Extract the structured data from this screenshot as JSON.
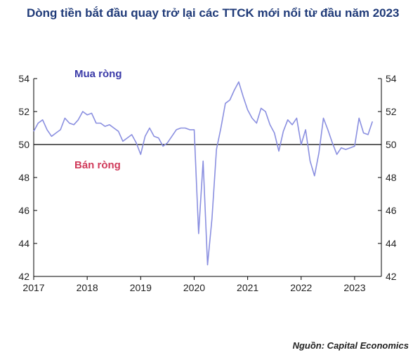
{
  "title": "Dòng tiền bắt đầu quay trở lại các TTCK mới nổi từ đầu năm 2023",
  "source": "Nguồn: Capital Economics",
  "colors": {
    "title": "#1f3a78",
    "line": "#8a8fe0",
    "buy": "#3a3aa8",
    "sell": "#d03a5a"
  },
  "chart_data": {
    "type": "line",
    "title": "Dòng tiền bắt đầu quay trở lại các TTCK mới nổi từ đầu năm 2023",
    "xlabel": "",
    "ylabel": "",
    "xlim": [
      2017,
      2023.5
    ],
    "ylim": [
      42,
      54
    ],
    "x_ticks": [
      "2017",
      "2018",
      "2019",
      "2020",
      "2021",
      "2022",
      "2023"
    ],
    "y_ticks": [
      "42",
      "44",
      "46",
      "48",
      "50",
      "52",
      "54"
    ],
    "reference_line": 50,
    "annotations": [
      "Mua ròng",
      "Bán ròng"
    ],
    "grid": false,
    "series": [
      {
        "name": "",
        "x": [
          2017.0,
          2017.083,
          2017.167,
          2017.25,
          2017.333,
          2017.417,
          2017.5,
          2017.583,
          2017.667,
          2017.75,
          2017.833,
          2017.917,
          2018.0,
          2018.083,
          2018.167,
          2018.25,
          2018.333,
          2018.417,
          2018.5,
          2018.583,
          2018.667,
          2018.75,
          2018.833,
          2018.917,
          2019.0,
          2019.083,
          2019.167,
          2019.25,
          2019.333,
          2019.417,
          2019.5,
          2019.583,
          2019.667,
          2019.75,
          2019.833,
          2019.917,
          2020.0,
          2020.083,
          2020.167,
          2020.25,
          2020.333,
          2020.417,
          2020.5,
          2020.583,
          2020.667,
          2020.75,
          2020.833,
          2020.917,
          2021.0,
          2021.083,
          2021.167,
          2021.25,
          2021.333,
          2021.417,
          2021.5,
          2021.583,
          2021.667,
          2021.75,
          2021.833,
          2021.917,
          2022.0,
          2022.083,
          2022.167,
          2022.25,
          2022.333,
          2022.417,
          2022.5,
          2022.583,
          2022.667,
          2022.75,
          2022.833,
          2022.917,
          2023.0,
          2023.083,
          2023.167,
          2023.25,
          2023.333
        ],
        "values": [
          50.8,
          51.3,
          51.5,
          50.9,
          50.5,
          50.7,
          50.9,
          51.6,
          51.3,
          51.2,
          51.5,
          52.0,
          51.8,
          51.9,
          51.3,
          51.3,
          51.1,
          51.2,
          51.0,
          50.8,
          50.2,
          50.4,
          50.6,
          50.1,
          49.4,
          50.5,
          51.0,
          50.5,
          50.4,
          49.9,
          50.1,
          50.5,
          50.9,
          51.0,
          51.0,
          50.9,
          50.9,
          44.6,
          49.0,
          42.7,
          45.5,
          49.7,
          51.0,
          52.5,
          52.7,
          53.3,
          53.8,
          52.9,
          52.1,
          51.6,
          51.3,
          52.2,
          52.0,
          51.2,
          50.7,
          49.6,
          50.8,
          51.5,
          51.2,
          51.6,
          50.0,
          50.9,
          49.0,
          48.1,
          49.5,
          51.6,
          50.9,
          50.1,
          49.4,
          49.8,
          49.7,
          49.8,
          49.9,
          51.6,
          50.7,
          50.6,
          51.4
        ]
      }
    ]
  }
}
